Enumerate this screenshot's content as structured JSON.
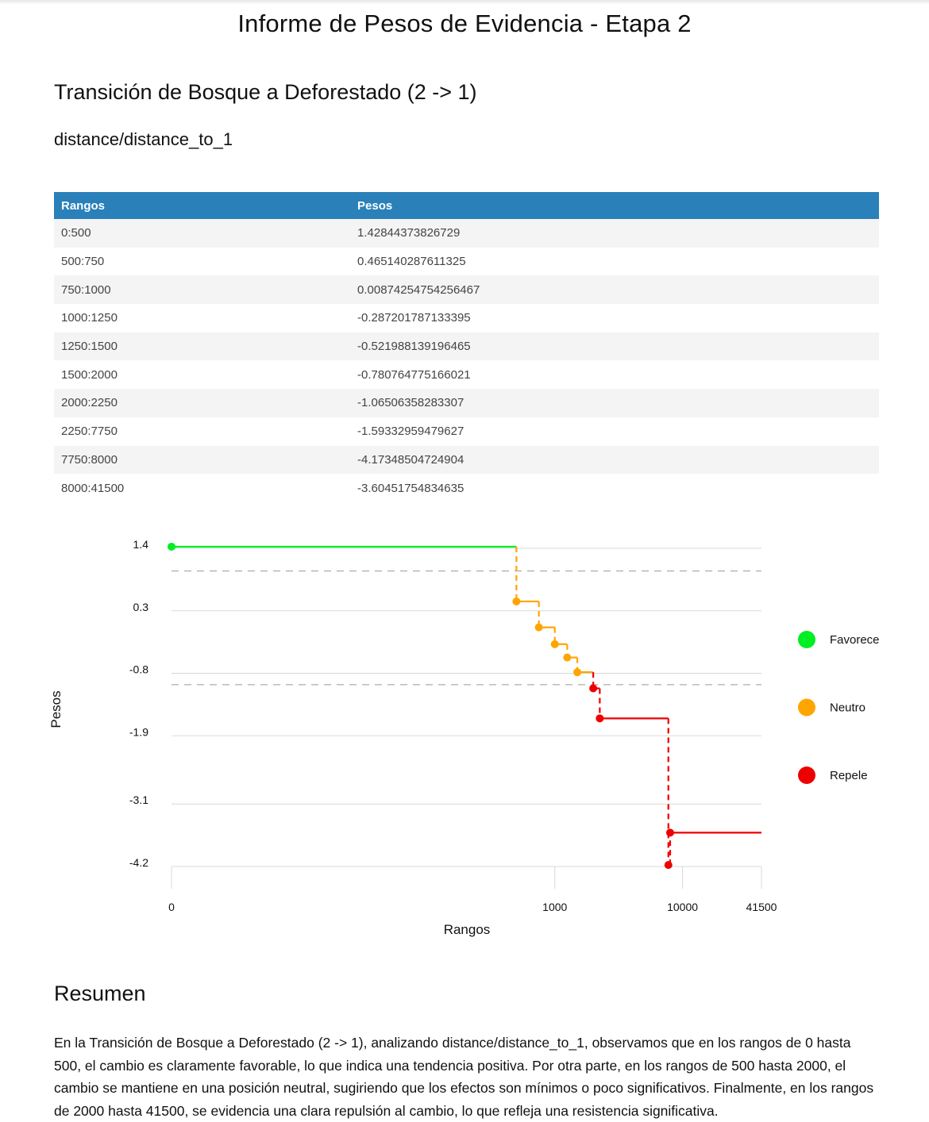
{
  "report": {
    "title": "Informe de Pesos de Evidencia - Etapa 2",
    "transition_title": "Transición de Bosque a Deforestado (2 -> 1)",
    "variable": "distance/distance_to_1"
  },
  "table": {
    "headers": [
      "Rangos",
      "Pesos"
    ],
    "rows": [
      [
        "0:500",
        "1.42844373826729"
      ],
      [
        "500:750",
        "0.465140287611325"
      ],
      [
        "750:1000",
        "0.00874254754256467"
      ],
      [
        "1000:1250",
        "-0.287201787133395"
      ],
      [
        "1250:1500",
        "-0.521988139196465"
      ],
      [
        "1500:2000",
        "-0.780764775166021"
      ],
      [
        "2000:2250",
        "-1.06506358283307"
      ],
      [
        "2250:7750",
        "-1.59332959479627"
      ],
      [
        "7750:8000",
        "-4.17348504724904"
      ],
      [
        "8000:41500",
        "-3.60451754834635"
      ]
    ]
  },
  "chart_data": {
    "type": "line",
    "step": true,
    "xlabel": "Rangos",
    "ylabel": "Pesos",
    "x_scale": "log1p",
    "x_ticks": [
      0,
      1000,
      10000,
      41500
    ],
    "x_tick_labels": [
      "0",
      "1000",
      "10000",
      "41500"
    ],
    "y_ticks": [
      1.4,
      0.3,
      -0.8,
      -1.9,
      -3.1,
      -4.2
    ],
    "y_tick_labels": [
      "1.4",
      "0.3",
      "-0.8",
      "-1.9",
      "-3.1",
      "-4.2"
    ],
    "ylim": [
      -4.2,
      1.4
    ],
    "xlim": [
      0,
      41500
    ],
    "thresholds": [
      1.0,
      -1.0
    ],
    "grid": true,
    "legend_position": "right",
    "points": [
      {
        "x": 0,
        "x_end": 500,
        "y": 1.42844373826729,
        "cls": "Favorece"
      },
      {
        "x": 500,
        "x_end": 750,
        "y": 0.465140287611325,
        "cls": "Neutro"
      },
      {
        "x": 750,
        "x_end": 1000,
        "y": 0.00874254754256467,
        "cls": "Neutro"
      },
      {
        "x": 1000,
        "x_end": 1250,
        "y": -0.287201787133395,
        "cls": "Neutro"
      },
      {
        "x": 1250,
        "x_end": 1500,
        "y": -0.521988139196465,
        "cls": "Neutro"
      },
      {
        "x": 1500,
        "x_end": 2000,
        "y": -0.780764775166021,
        "cls": "Neutro"
      },
      {
        "x": 2000,
        "x_end": 2250,
        "y": -1.06506358283307,
        "cls": "Repele"
      },
      {
        "x": 2250,
        "x_end": 7750,
        "y": -1.59332959479627,
        "cls": "Repele"
      },
      {
        "x": 7750,
        "x_end": 8000,
        "y": -4.17348504724904,
        "cls": "Repele"
      },
      {
        "x": 8000,
        "x_end": 41500,
        "y": -3.60451754834635,
        "cls": "Repele"
      }
    ],
    "legend": [
      {
        "label": "Favorece",
        "color": "#00ee22"
      },
      {
        "label": "Neutro",
        "color": "#ffa500"
      },
      {
        "label": "Repele",
        "color": "#ee0000"
      }
    ]
  },
  "summary": {
    "title": "Resumen",
    "text": "En la Transición de Bosque a Deforestado (2 -> 1), analizando distance/distance_to_1, observamos que en los rangos de 0 hasta 500, el cambio es claramente favorable, lo que indica una tendencia positiva. Por otra parte, en los rangos de 500 hasta 2000, el cambio se mantiene en una posición neutral, sugiriendo que los efectos son mínimos o poco significativos. Finalmente, en los rangos de 2000 hasta 41500, se evidencia una clara repulsión al cambio, lo que refleja una resistencia significativa."
  }
}
